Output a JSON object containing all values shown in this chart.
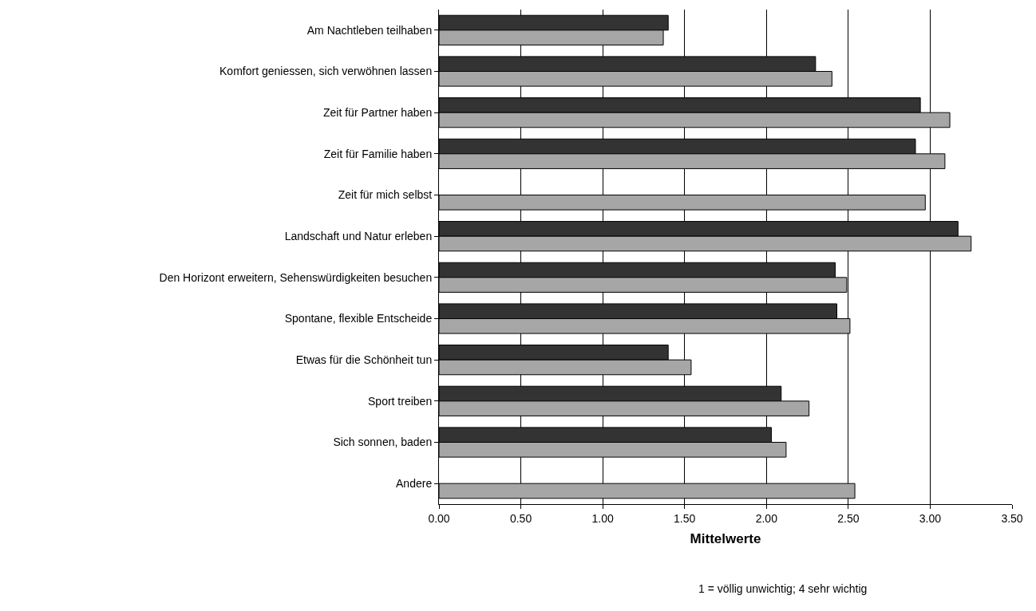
{
  "chart_data": {
    "type": "bar",
    "orientation": "horizontal",
    "xlabel": "Mittelwerte",
    "annotations": [
      "1 = völlig unwichtig; 4 sehr wichtig"
    ],
    "categories": [
      "Am Nachtleben teilhaben",
      "Komfort geniessen, sich verwöhnen lassen",
      "Zeit für Partner haben",
      "Zeit für Familie haben",
      "Zeit für mich selbst",
      "Landschaft und Natur erleben",
      "Den Horizont erweitern, Sehenswürdigkeiten besuchen",
      "Spontane, flexible Entscheide",
      "Etwas für die Schönheit tun",
      "Sport treiben",
      "Sich sonnen, baden",
      "Andere"
    ],
    "series": [
      {
        "color": "#333333",
        "values": [
          1.4,
          2.3,
          2.94,
          2.91,
          null,
          3.17,
          2.42,
          2.43,
          1.4,
          2.09,
          2.03,
          null
        ]
      },
      {
        "color": "#a6a6a6",
        "values": [
          1.37,
          2.4,
          3.12,
          3.09,
          2.97,
          3.25,
          2.49,
          2.51,
          1.54,
          2.26,
          2.12,
          2.54
        ]
      }
    ],
    "xlim": [
      0,
      3.5
    ],
    "xticks": [
      {
        "value": 0,
        "label": "0.00"
      },
      {
        "value": 0.5,
        "label": "0.50"
      },
      {
        "value": 1,
        "label": "1.00"
      },
      {
        "value": 1.5,
        "label": "1.50"
      },
      {
        "value": 2,
        "label": "2.00"
      },
      {
        "value": 2.5,
        "label": "2.50"
      },
      {
        "value": 3,
        "label": "3.00"
      },
      {
        "value": 3.5,
        "label": "3.50"
      }
    ],
    "grid": "x"
  }
}
